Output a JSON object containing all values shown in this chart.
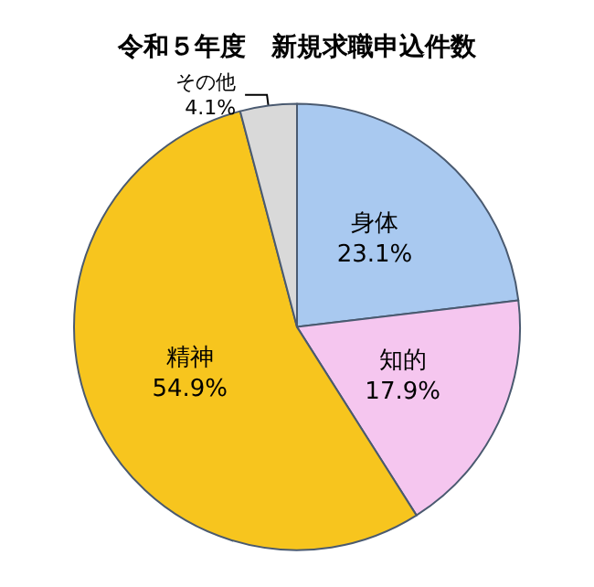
{
  "chart_data": {
    "type": "pie",
    "title": "令和５年度　新規求職申込件数",
    "categories": [
      "身体",
      "知的",
      "精神",
      "その他"
    ],
    "values": [
      23.1,
      17.9,
      54.9,
      4.1
    ],
    "value_labels": [
      "23.1%",
      "17.9%",
      "54.9%",
      "4.1%"
    ],
    "colors": [
      "#a9c9f0",
      "#f5c6ef",
      "#f7c51e",
      "#d9d9d9"
    ]
  }
}
